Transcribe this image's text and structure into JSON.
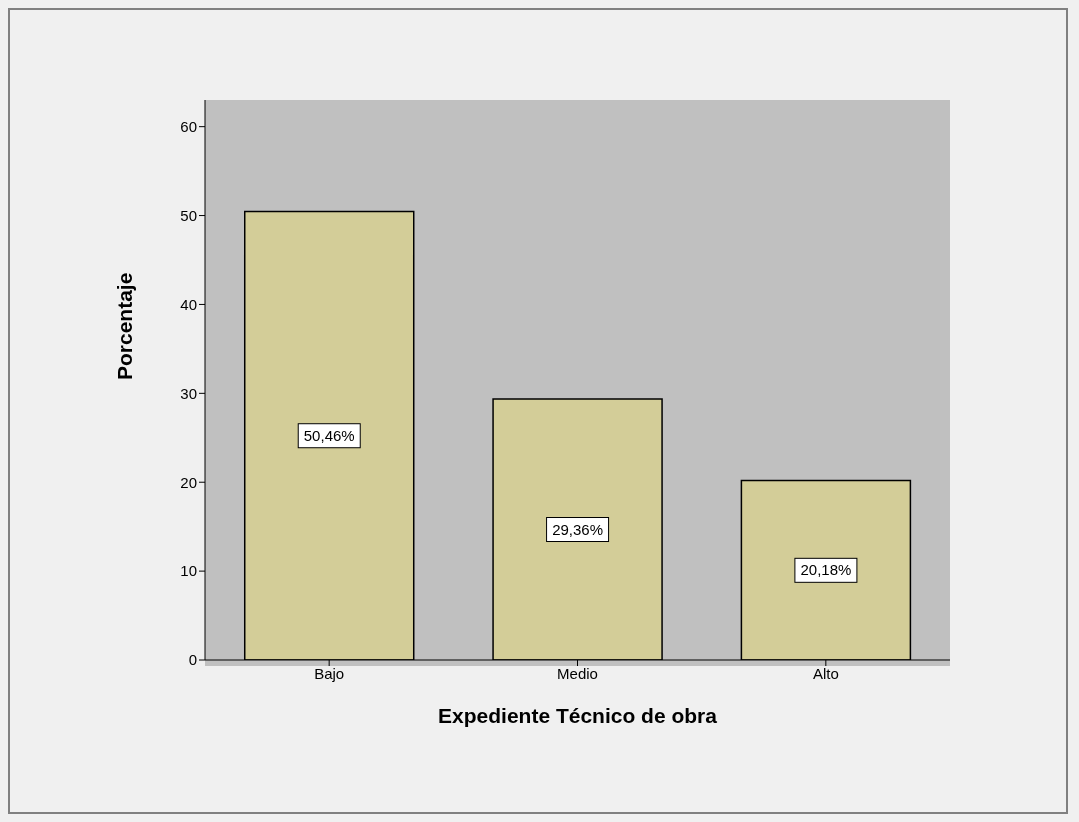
{
  "chart_data": {
    "type": "bar",
    "xlabel": "Expediente Técnico de obra",
    "ylabel": "Porcentaje",
    "categories": [
      "Bajo",
      "Medio",
      "Alto"
    ],
    "values": [
      50.46,
      29.36,
      20.18
    ],
    "value_labels": [
      "50,46%",
      "29,36%",
      "20,18%"
    ],
    "color": "#d3cd98",
    "ylim": [
      0,
      63
    ],
    "yticks": [
      0,
      10,
      20,
      30,
      40,
      50,
      60
    ],
    "grid": false,
    "legend": false
  }
}
